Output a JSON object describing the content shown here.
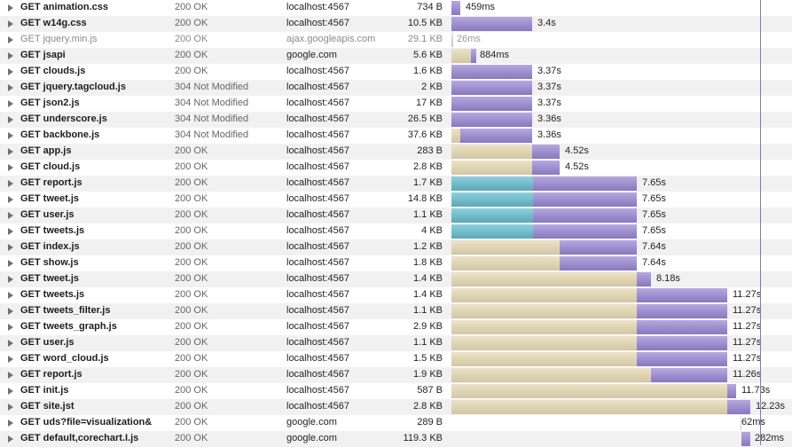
{
  "network": {
    "requests": [
      {
        "method": "GET",
        "name": "animation.css",
        "status": "200 OK",
        "domain": "localhost:4567",
        "size": "734 B",
        "duration": "459ms",
        "type": "normal"
      },
      {
        "method": "GET",
        "name": "w14g.css",
        "status": "200 OK",
        "domain": "localhost:4567",
        "size": "10.5 KB",
        "duration": "3.4s",
        "type": "normal"
      },
      {
        "method": "GET",
        "name": "jquery.min.js",
        "status": "200 OK",
        "domain": "ajax.googleapis.com",
        "size": "29.1 KB",
        "duration": "26ms",
        "type": "cached"
      },
      {
        "method": "GET",
        "name": "jsapi",
        "status": "200 OK",
        "domain": "google.com",
        "size": "5.6 KB",
        "duration": "884ms",
        "type": "normal"
      },
      {
        "method": "GET",
        "name": "clouds.js",
        "status": "200 OK",
        "domain": "localhost:4567",
        "size": "1.6 KB",
        "duration": "3.37s",
        "type": "normal"
      },
      {
        "method": "GET",
        "name": "jquery.tagcloud.js",
        "status": "304 Not Modified",
        "domain": "localhost:4567",
        "size": "2 KB",
        "duration": "3.37s",
        "type": "normal"
      },
      {
        "method": "GET",
        "name": "json2.js",
        "status": "304 Not Modified",
        "domain": "localhost:4567",
        "size": "17 KB",
        "duration": "3.37s",
        "type": "normal"
      },
      {
        "method": "GET",
        "name": "underscore.js",
        "status": "304 Not Modified",
        "domain": "localhost:4567",
        "size": "26.5 KB",
        "duration": "3.36s",
        "type": "normal"
      },
      {
        "method": "GET",
        "name": "backbone.js",
        "status": "304 Not Modified",
        "domain": "localhost:4567",
        "size": "37.6 KB",
        "duration": "3.36s",
        "type": "normal"
      },
      {
        "method": "GET",
        "name": "app.js",
        "status": "200 OK",
        "domain": "localhost:4567",
        "size": "283 B",
        "duration": "4.52s",
        "type": "normal"
      },
      {
        "method": "GET",
        "name": "cloud.js",
        "status": "200 OK",
        "domain": "localhost:4567",
        "size": "2.8 KB",
        "duration": "4.52s",
        "type": "normal"
      },
      {
        "method": "GET",
        "name": "report.js",
        "status": "200 OK",
        "domain": "localhost:4567",
        "size": "1.7 KB",
        "duration": "7.65s",
        "type": "normal"
      },
      {
        "method": "GET",
        "name": "tweet.js",
        "status": "200 OK",
        "domain": "localhost:4567",
        "size": "14.8 KB",
        "duration": "7.65s",
        "type": "normal"
      },
      {
        "method": "GET",
        "name": "user.js",
        "status": "200 OK",
        "domain": "localhost:4567",
        "size": "1.1 KB",
        "duration": "7.65s",
        "type": "normal"
      },
      {
        "method": "GET",
        "name": "tweets.js",
        "status": "200 OK",
        "domain": "localhost:4567",
        "size": "4 KB",
        "duration": "7.65s",
        "type": "normal"
      },
      {
        "method": "GET",
        "name": "index.js",
        "status": "200 OK",
        "domain": "localhost:4567",
        "size": "1.2 KB",
        "duration": "7.64s",
        "type": "normal"
      },
      {
        "method": "GET",
        "name": "show.js",
        "status": "200 OK",
        "domain": "localhost:4567",
        "size": "1.8 KB",
        "duration": "7.64s",
        "type": "normal"
      },
      {
        "method": "GET",
        "name": "tweet.js",
        "status": "200 OK",
        "domain": "localhost:4567",
        "size": "1.4 KB",
        "duration": "8.18s",
        "type": "normal"
      },
      {
        "method": "GET",
        "name": "tweets.js",
        "status": "200 OK",
        "domain": "localhost:4567",
        "size": "1.4 KB",
        "duration": "11.27s",
        "type": "normal"
      },
      {
        "method": "GET",
        "name": "tweets_filter.js",
        "status": "200 OK",
        "domain": "localhost:4567",
        "size": "1.1 KB",
        "duration": "11.27s",
        "type": "normal"
      },
      {
        "method": "GET",
        "name": "tweets_graph.js",
        "status": "200 OK",
        "domain": "localhost:4567",
        "size": "2.9 KB",
        "duration": "11.27s",
        "type": "normal"
      },
      {
        "method": "GET",
        "name": "user.js",
        "status": "200 OK",
        "domain": "localhost:4567",
        "size": "1.1 KB",
        "duration": "11.27s",
        "type": "normal"
      },
      {
        "method": "GET",
        "name": "word_cloud.js",
        "status": "200 OK",
        "domain": "localhost:4567",
        "size": "1.5 KB",
        "duration": "11.27s",
        "type": "normal"
      },
      {
        "method": "GET",
        "name": "report.js",
        "status": "200 OK",
        "domain": "localhost:4567",
        "size": "1.9 KB",
        "duration": "11.26s",
        "type": "normal"
      },
      {
        "method": "GET",
        "name": "init.js",
        "status": "200 OK",
        "domain": "localhost:4567",
        "size": "587 B",
        "duration": "11.73s",
        "type": "normal"
      },
      {
        "method": "GET",
        "name": "site.jst",
        "status": "200 OK",
        "domain": "localhost:4567",
        "size": "2.8 KB",
        "duration": "12.23s",
        "type": "normal"
      },
      {
        "method": "GET",
        "name": "uds?file=visualization&",
        "status": "200 OK",
        "domain": "google.com",
        "size": "289 B",
        "duration": "62ms",
        "type": "normal"
      },
      {
        "method": "GET",
        "name": "default,corechart.I.js",
        "status": "200 OK",
        "domain": "google.com",
        "size": "119.3 KB",
        "duration": "282ms",
        "type": "normal"
      }
    ]
  },
  "colors": {
    "waiting": "#d9cba8",
    "blocking": "#6bb9c8",
    "receiving": "#9384c8",
    "cached": "#d0d0d0"
  }
}
